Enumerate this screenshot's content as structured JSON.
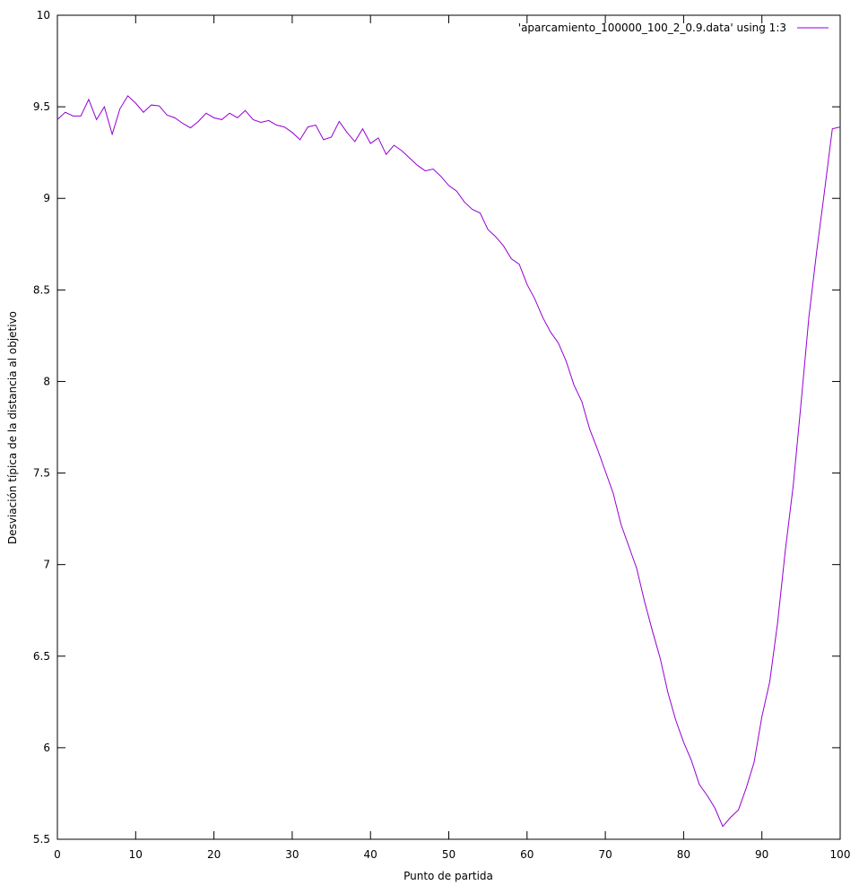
{
  "chart_data": {
    "type": "line",
    "xlabel": "Punto de partida",
    "ylabel": "Desviación típica de la distancia al objetivo",
    "xlim": [
      0,
      100
    ],
    "ylim": [
      5.5,
      10
    ],
    "xticks": [
      "0",
      "10",
      "20",
      "30",
      "40",
      "50",
      "60",
      "70",
      "80",
      "90",
      "100"
    ],
    "yticks": [
      "5.5",
      "6",
      "6.5",
      "7",
      "7.5",
      "8",
      "8.5",
      "9",
      "9.5",
      "10"
    ],
    "grid": false,
    "legend": "top-right",
    "color": "#9400d3",
    "series": [
      {
        "name": "'aparcamiento_100000_100_2_0.9.data' using 1:3",
        "x": [
          0,
          1,
          2,
          3,
          4,
          5,
          6,
          7,
          8,
          9,
          10,
          11,
          12,
          13,
          14,
          15,
          16,
          17,
          18,
          19,
          20,
          21,
          22,
          23,
          24,
          25,
          26,
          27,
          28,
          29,
          30,
          31,
          32,
          33,
          34,
          35,
          36,
          37,
          38,
          39,
          40,
          41,
          42,
          43,
          44,
          45,
          46,
          47,
          48,
          49,
          50,
          51,
          52,
          53,
          54,
          55,
          56,
          57,
          58,
          59,
          60,
          61,
          62,
          63,
          64,
          65,
          66,
          67,
          68,
          69,
          70,
          71,
          72,
          73,
          74,
          75,
          76,
          77,
          78,
          79,
          80,
          81,
          82,
          83,
          84,
          85,
          86,
          87,
          88,
          89,
          90,
          91,
          92,
          93,
          94,
          95,
          96,
          97,
          98,
          99,
          100
        ],
        "values": [
          9.43,
          9.47,
          9.45,
          9.45,
          9.54,
          9.43,
          9.5,
          9.35,
          9.49,
          9.56,
          9.52,
          9.47,
          9.51,
          9.505,
          9.455,
          9.44,
          9.41,
          9.385,
          9.42,
          9.465,
          9.44,
          9.43,
          9.465,
          9.44,
          9.48,
          9.43,
          9.415,
          9.425,
          9.4,
          9.39,
          9.36,
          9.32,
          9.39,
          9.4,
          9.32,
          9.335,
          9.42,
          9.36,
          9.31,
          9.38,
          9.3,
          9.33,
          9.24,
          9.29,
          9.26,
          9.22,
          9.18,
          9.15,
          9.16,
          9.12,
          9.07,
          9.04,
          8.98,
          8.94,
          8.92,
          8.83,
          8.79,
          8.74,
          8.67,
          8.64,
          8.53,
          8.45,
          8.35,
          8.27,
          8.21,
          8.11,
          7.98,
          7.89,
          7.74,
          7.63,
          7.51,
          7.39,
          7.22,
          7.1,
          6.98,
          6.8,
          6.64,
          6.49,
          6.3,
          6.15,
          6.03,
          5.93,
          5.8,
          5.74,
          5.67,
          5.57,
          5.62,
          5.66,
          5.78,
          5.92,
          6.17,
          6.36,
          6.68,
          7.08,
          7.43,
          7.88,
          8.35,
          8.71,
          9.04,
          9.38,
          9.39
        ]
      }
    ]
  }
}
